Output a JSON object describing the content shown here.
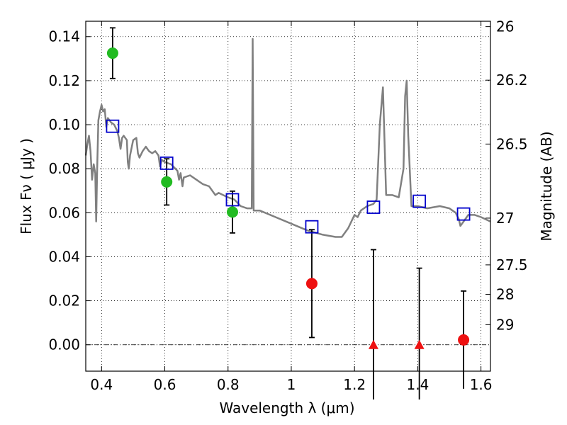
{
  "chart_data": {
    "type": "scatter",
    "xlabel": "Wavelength  λ (μm)",
    "ylabel": "Flux  Fν  ( μJy )",
    "ylabel_right": "Magnitude (AB)",
    "xlim": [
      0.35,
      1.63
    ],
    "ylim": [
      -0.012,
      0.147
    ],
    "grid": true,
    "x_ticks": [
      0.4,
      0.6,
      0.8,
      1.0,
      1.2,
      1.4,
      1.6
    ],
    "x_tick_labels": [
      "0.4",
      "0.6",
      "0.8",
      "1",
      "1.2",
      "1.4",
      "1.6"
    ],
    "y_ticks": [
      0.0,
      0.02,
      0.04,
      0.06,
      0.08,
      0.1,
      0.12,
      0.14
    ],
    "y_tick_labels": [
      "0.00",
      "0.02",
      "0.04",
      "0.06",
      "0.08",
      "0.10",
      "0.12",
      "0.14"
    ],
    "mag_ticks": [
      {
        "mag": 26,
        "label": "26"
      },
      {
        "mag": 26.2,
        "label": "26.2"
      },
      {
        "mag": 26.5,
        "label": "26.5"
      },
      {
        "mag": 27,
        "label": "27"
      },
      {
        "mag": 27.5,
        "label": "27.5"
      },
      {
        "mag": 28,
        "label": "28"
      },
      {
        "mag": 29,
        "label": "29"
      }
    ],
    "series": [
      {
        "marker": "circle",
        "color": "#22bb22",
        "points": [
          {
            "x": 0.435,
            "y": 0.1325,
            "err": 0.0115
          },
          {
            "x": 0.606,
            "y": 0.074,
            "err": 0.0105
          },
          {
            "x": 0.814,
            "y": 0.0603,
            "err": 0.0095
          }
        ]
      },
      {
        "marker": "circle",
        "color": "#ee1111",
        "points": [
          {
            "x": 1.065,
            "y": 0.0278,
            "err": 0.0245
          },
          {
            "x": 1.545,
            "y": 0.0022,
            "err": 0.0222
          }
        ]
      },
      {
        "marker": "triangle",
        "color": "#ee1111",
        "points": [
          {
            "x": 1.26,
            "y": 0.0,
            "err": 0.0432
          },
          {
            "x": 1.405,
            "y": 0.0,
            "err": 0.0348
          }
        ]
      },
      {
        "marker": "open-square",
        "color": "#0000cc",
        "points": [
          {
            "x": 0.435,
            "y": 0.0993
          },
          {
            "x": 0.606,
            "y": 0.0825
          },
          {
            "x": 0.814,
            "y": 0.0659
          },
          {
            "x": 1.065,
            "y": 0.0536
          },
          {
            "x": 1.26,
            "y": 0.0625
          },
          {
            "x": 1.405,
            "y": 0.0652
          },
          {
            "x": 1.545,
            "y": 0.0594
          }
        ]
      },
      {
        "marker": "line",
        "color": "#808080",
        "points": [
          {
            "x": 0.35,
            "y": 0.086
          },
          {
            "x": 0.355,
            "y": 0.091
          },
          {
            "x": 0.36,
            "y": 0.095
          },
          {
            "x": 0.365,
            "y": 0.088
          },
          {
            "x": 0.37,
            "y": 0.075
          },
          {
            "x": 0.375,
            "y": 0.082
          },
          {
            "x": 0.38,
            "y": 0.078
          },
          {
            "x": 0.383,
            "y": 0.056
          },
          {
            "x": 0.386,
            "y": 0.08
          },
          {
            "x": 0.39,
            "y": 0.102
          },
          {
            "x": 0.395,
            "y": 0.106
          },
          {
            "x": 0.4,
            "y": 0.109
          },
          {
            "x": 0.405,
            "y": 0.106
          },
          {
            "x": 0.41,
            "y": 0.107
          },
          {
            "x": 0.415,
            "y": 0.099
          },
          {
            "x": 0.42,
            "y": 0.103
          },
          {
            "x": 0.43,
            "y": 0.101
          },
          {
            "x": 0.44,
            "y": 0.1
          },
          {
            "x": 0.45,
            "y": 0.097
          },
          {
            "x": 0.455,
            "y": 0.094
          },
          {
            "x": 0.46,
            "y": 0.089
          },
          {
            "x": 0.465,
            "y": 0.094
          },
          {
            "x": 0.47,
            "y": 0.095
          },
          {
            "x": 0.48,
            "y": 0.093
          },
          {
            "x": 0.483,
            "y": 0.083
          },
          {
            "x": 0.486,
            "y": 0.08
          },
          {
            "x": 0.49,
            "y": 0.086
          },
          {
            "x": 0.5,
            "y": 0.093
          },
          {
            "x": 0.51,
            "y": 0.094
          },
          {
            "x": 0.515,
            "y": 0.087
          },
          {
            "x": 0.52,
            "y": 0.085
          },
          {
            "x": 0.53,
            "y": 0.088
          },
          {
            "x": 0.54,
            "y": 0.09
          },
          {
            "x": 0.55,
            "y": 0.088
          },
          {
            "x": 0.56,
            "y": 0.087
          },
          {
            "x": 0.57,
            "y": 0.088
          },
          {
            "x": 0.58,
            "y": 0.086
          },
          {
            "x": 0.585,
            "y": 0.081
          },
          {
            "x": 0.59,
            "y": 0.084
          },
          {
            "x": 0.6,
            "y": 0.083
          },
          {
            "x": 0.62,
            "y": 0.082
          },
          {
            "x": 0.64,
            "y": 0.079
          },
          {
            "x": 0.645,
            "y": 0.075
          },
          {
            "x": 0.65,
            "y": 0.078
          },
          {
            "x": 0.656,
            "y": 0.072
          },
          {
            "x": 0.66,
            "y": 0.076
          },
          {
            "x": 0.68,
            "y": 0.077
          },
          {
            "x": 0.7,
            "y": 0.075
          },
          {
            "x": 0.72,
            "y": 0.073
          },
          {
            "x": 0.74,
            "y": 0.072
          },
          {
            "x": 0.75,
            "y": 0.07
          },
          {
            "x": 0.76,
            "y": 0.068
          },
          {
            "x": 0.77,
            "y": 0.069
          },
          {
            "x": 0.8,
            "y": 0.067
          },
          {
            "x": 0.82,
            "y": 0.066
          },
          {
            "x": 0.84,
            "y": 0.063
          },
          {
            "x": 0.86,
            "y": 0.062
          },
          {
            "x": 0.875,
            "y": 0.062
          },
          {
            "x": 0.878,
            "y": 0.139
          },
          {
            "x": 0.881,
            "y": 0.061
          },
          {
            "x": 0.9,
            "y": 0.061
          },
          {
            "x": 0.95,
            "y": 0.058
          },
          {
            "x": 1.0,
            "y": 0.055
          },
          {
            "x": 1.05,
            "y": 0.052
          },
          {
            "x": 1.1,
            "y": 0.05
          },
          {
            "x": 1.14,
            "y": 0.049
          },
          {
            "x": 1.16,
            "y": 0.049
          },
          {
            "x": 1.18,
            "y": 0.053
          },
          {
            "x": 1.2,
            "y": 0.059
          },
          {
            "x": 1.21,
            "y": 0.058
          },
          {
            "x": 1.22,
            "y": 0.061
          },
          {
            "x": 1.24,
            "y": 0.063
          },
          {
            "x": 1.26,
            "y": 0.064
          },
          {
            "x": 1.27,
            "y": 0.066
          },
          {
            "x": 1.28,
            "y": 0.1
          },
          {
            "x": 1.29,
            "y": 0.117
          },
          {
            "x": 1.3,
            "y": 0.068
          },
          {
            "x": 1.32,
            "y": 0.068
          },
          {
            "x": 1.34,
            "y": 0.067
          },
          {
            "x": 1.355,
            "y": 0.08
          },
          {
            "x": 1.36,
            "y": 0.113
          },
          {
            "x": 1.365,
            "y": 0.12
          },
          {
            "x": 1.37,
            "y": 0.095
          },
          {
            "x": 1.38,
            "y": 0.063
          },
          {
            "x": 1.4,
            "y": 0.063
          },
          {
            "x": 1.43,
            "y": 0.062
          },
          {
            "x": 1.47,
            "y": 0.063
          },
          {
            "x": 1.5,
            "y": 0.062
          },
          {
            "x": 1.52,
            "y": 0.06
          },
          {
            "x": 1.53,
            "y": 0.057
          },
          {
            "x": 1.535,
            "y": 0.054
          },
          {
            "x": 1.54,
            "y": 0.055
          },
          {
            "x": 1.56,
            "y": 0.059
          },
          {
            "x": 1.58,
            "y": 0.059
          },
          {
            "x": 1.6,
            "y": 0.058
          },
          {
            "x": 1.63,
            "y": 0.056
          }
        ]
      }
    ]
  }
}
